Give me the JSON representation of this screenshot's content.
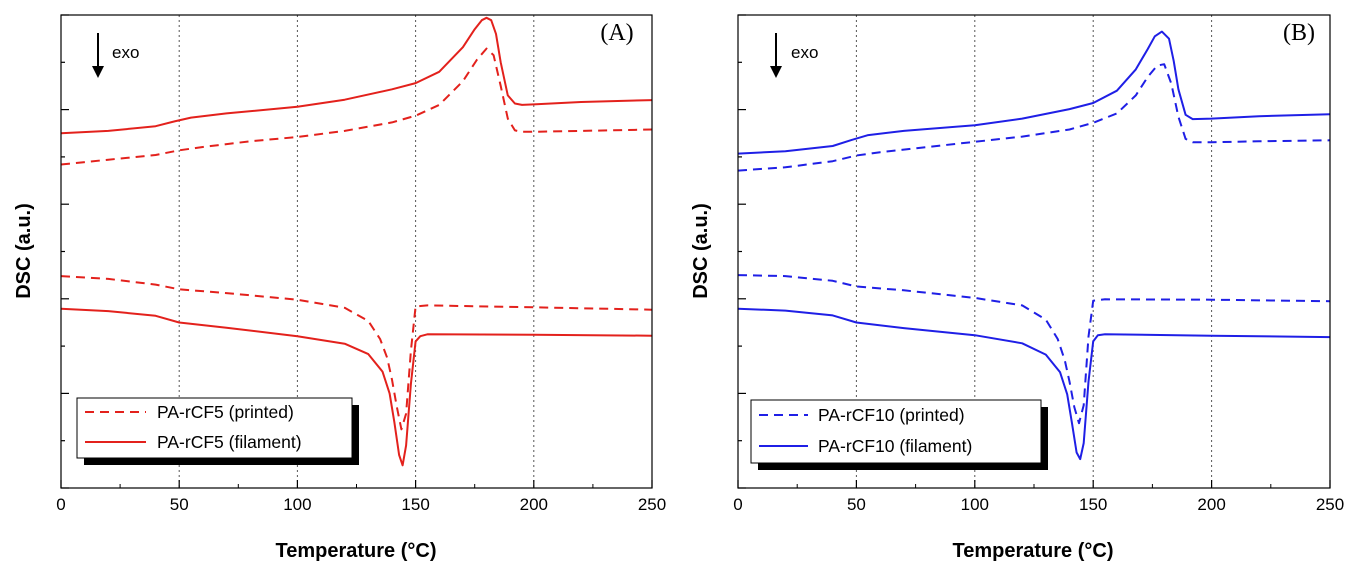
{
  "chart_data": [
    {
      "type": "line",
      "panel_label": "(A)",
      "xlabel": "Temperature (°C)",
      "ylabel": "DSC (a.u.)",
      "xlim": [
        0,
        250
      ],
      "ylim": [
        0,
        100
      ],
      "x_ticks": [
        0,
        50,
        100,
        150,
        200,
        250
      ],
      "y_tick_labels": "none",
      "grid": "vertical dotted lines at x ticks",
      "annotation": "exo",
      "annotation_arrow": "down",
      "legend_position": "bottom-left",
      "color": "#e3211c",
      "series": [
        {
          "name": "PA-rCF5 (printed)",
          "style": "dashed",
          "x": [
            0,
            20,
            40,
            50,
            60,
            80,
            100,
            120,
            140,
            150,
            160,
            170,
            176,
            180,
            183,
            186,
            189,
            192,
            195,
            200,
            220,
            250
          ],
          "y": [
            68.4,
            69.4,
            70.4,
            71.4,
            72.1,
            73.3,
            74.2,
            75.5,
            77.3,
            78.7,
            81.0,
            86.0,
            90.6,
            92.9,
            91.5,
            85.0,
            78.1,
            75.6,
            75.3,
            75.3,
            75.5,
            75.8
          ]
        },
        {
          "name": "PA-rCF5 (filament)",
          "style": "solid",
          "x": [
            0,
            20,
            40,
            48,
            55,
            70,
            100,
            120,
            140,
            150,
            160,
            170,
            175,
            178,
            180,
            182,
            184,
            186,
            189,
            192,
            195,
            200,
            220,
            250
          ],
          "y": [
            75.0,
            75.5,
            76.5,
            77.5,
            78.3,
            79.2,
            80.6,
            82.1,
            84.3,
            85.6,
            88.0,
            93.2,
            97.0,
            98.9,
            99.4,
            98.9,
            96.0,
            90.0,
            83.0,
            81.3,
            81.0,
            81.1,
            81.6,
            82.0
          ]
        },
        {
          "name": "PA-rCF5 (printed) cooling",
          "style": "dashed",
          "x": [
            0,
            20,
            40,
            50,
            70,
            100,
            120,
            130,
            135,
            138,
            140,
            142,
            144,
            146,
            148,
            150,
            155,
            200,
            250
          ],
          "y": [
            44.8,
            44.2,
            43.0,
            42.0,
            41.2,
            39.8,
            38.1,
            35.3,
            31.5,
            27.5,
            22.9,
            17.3,
            12.4,
            15.7,
            29.0,
            38.4,
            38.6,
            38.2,
            37.7
          ]
        },
        {
          "name": "PA-rCF5 (filament) cooling",
          "style": "solid",
          "x": [
            0,
            20,
            40,
            50,
            70,
            100,
            120,
            130,
            136,
            139,
            141,
            143,
            144.5,
            146,
            148,
            150,
            152,
            155,
            200,
            250
          ],
          "y": [
            37.9,
            37.4,
            36.4,
            35.0,
            33.9,
            32.1,
            30.5,
            28.3,
            24.6,
            20.0,
            14.0,
            7.0,
            4.8,
            9.0,
            22.0,
            31.0,
            32.1,
            32.5,
            32.4,
            32.2
          ]
        }
      ]
    },
    {
      "type": "line",
      "panel_label": "(B)",
      "xlabel": "Temperature (°C)",
      "ylabel": "DSC (a.u.)",
      "xlim": [
        0,
        250
      ],
      "ylim": [
        0,
        100
      ],
      "x_ticks": [
        0,
        50,
        100,
        150,
        200,
        250
      ],
      "y_tick_labels": "none",
      "grid": "vertical dotted lines at x ticks",
      "annotation": "exo",
      "annotation_arrow": "down",
      "legend_position": "bottom-left",
      "color": "#1f1fe6",
      "series": [
        {
          "name": "PA-rCF10 (printed)",
          "style": "dashed",
          "x": [
            0,
            20,
            40,
            50,
            60,
            80,
            100,
            120,
            140,
            150,
            160,
            168,
            173,
            177,
            180,
            183,
            186,
            189,
            192,
            200,
            220,
            250
          ],
          "y": [
            67.1,
            67.8,
            69.1,
            70.3,
            71.0,
            72.1,
            73.2,
            74.3,
            75.8,
            77.2,
            79.2,
            83.0,
            86.9,
            89.3,
            89.6,
            85.5,
            78.5,
            73.8,
            73.1,
            73.1,
            73.3,
            73.5
          ]
        },
        {
          "name": "PA-rCF10 (filament)",
          "style": "solid",
          "x": [
            0,
            20,
            40,
            48,
            55,
            70,
            100,
            120,
            140,
            150,
            160,
            168,
            173,
            176,
            179,
            182,
            184,
            186,
            189,
            192,
            200,
            220,
            250
          ],
          "y": [
            70.7,
            71.2,
            72.3,
            73.6,
            74.6,
            75.5,
            76.7,
            78.1,
            80.1,
            81.4,
            84.0,
            88.5,
            92.8,
            95.5,
            96.5,
            95.0,
            90.3,
            84.3,
            78.9,
            78.0,
            78.1,
            78.6,
            79.0
          ]
        },
        {
          "name": "PA-rCF10 (printed) cooling",
          "style": "dashed",
          "x": [
            0,
            20,
            40,
            50,
            70,
            100,
            120,
            130,
            135,
            138,
            140,
            142,
            144,
            146,
            148,
            150,
            155,
            200,
            250
          ],
          "y": [
            45.0,
            44.8,
            43.8,
            42.6,
            41.8,
            40.2,
            38.6,
            35.6,
            31.5,
            27.0,
            22.5,
            17.1,
            13.7,
            17.5,
            32.0,
            39.6,
            39.9,
            39.8,
            39.5
          ]
        },
        {
          "name": "PA-rCF10 (filament) cooling",
          "style": "solid",
          "x": [
            0,
            20,
            40,
            50,
            70,
            100,
            120,
            130,
            136,
            139,
            141,
            143,
            144.5,
            146,
            148,
            150,
            152,
            155,
            200,
            250
          ],
          "y": [
            37.9,
            37.5,
            36.5,
            35.0,
            33.8,
            32.3,
            30.6,
            28.2,
            24.5,
            19.8,
            13.8,
            7.5,
            6.1,
            9.5,
            22.5,
            31.0,
            32.3,
            32.5,
            32.2,
            31.9
          ]
        }
      ]
    }
  ]
}
